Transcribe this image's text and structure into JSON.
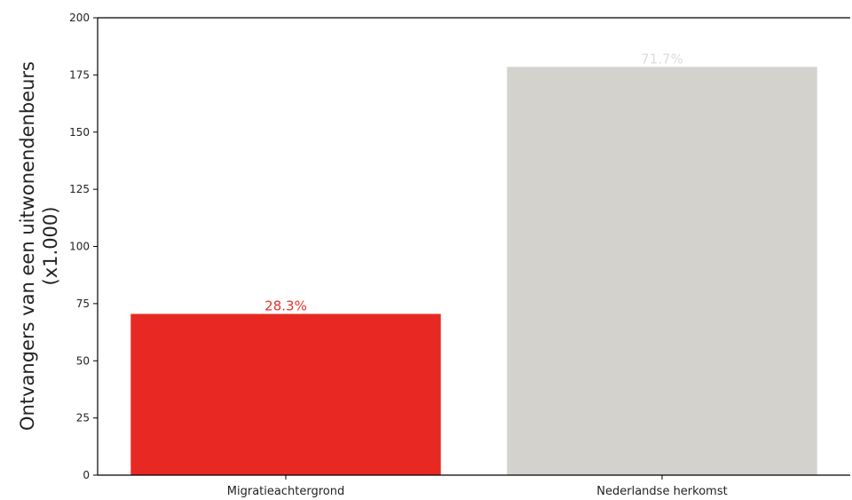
{
  "chart_data": {
    "type": "bar",
    "categories": [
      "Migratieachtergrond",
      "Nederlandse herkomst"
    ],
    "values": [
      70.5,
      178.5
    ],
    "data_labels": [
      "28.3%",
      "71.7%"
    ],
    "colors": [
      "#e82822",
      "#d3d2cd"
    ],
    "label_colors": [
      "#e8302a",
      "#dcdcdc"
    ],
    "title": "",
    "xlabel": "",
    "ylabel_lines": [
      "Ontvangers van een uitwonendenbeurs",
      "(x1.000)"
    ],
    "ylim": [
      0,
      200
    ],
    "yticks": [
      0,
      25,
      50,
      75,
      100,
      125,
      150,
      175,
      200
    ],
    "grid": false,
    "legend": "none"
  }
}
